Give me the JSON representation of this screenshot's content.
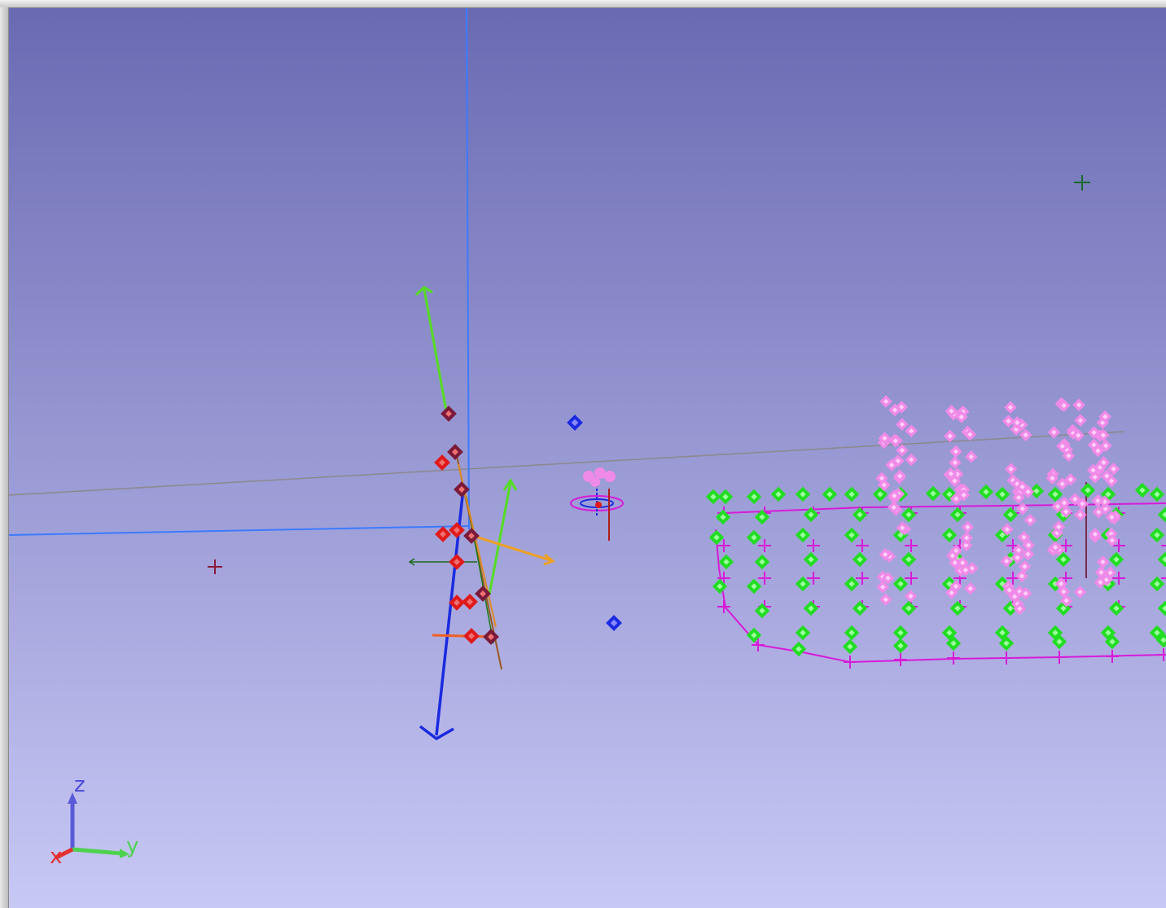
{
  "viewport": {
    "background_top": "#6a6ab3",
    "background_bottom": "#c8c8f5"
  },
  "orientation_widget": {
    "x_label": "x",
    "y_label": "y",
    "z_label": "z",
    "x_color": "#e23030",
    "y_color": "#4fd24f",
    "z_color": "#4a4ad8"
  },
  "colors": {
    "green_marker": "#22dd22",
    "pink_marker": "#f08ae8",
    "magenta_line": "#d81ad8",
    "red_marker": "#e01a1a",
    "blue_marker": "#1a1ae0",
    "gray_line": "#888888",
    "light_blue_line": "#3b7bff"
  }
}
